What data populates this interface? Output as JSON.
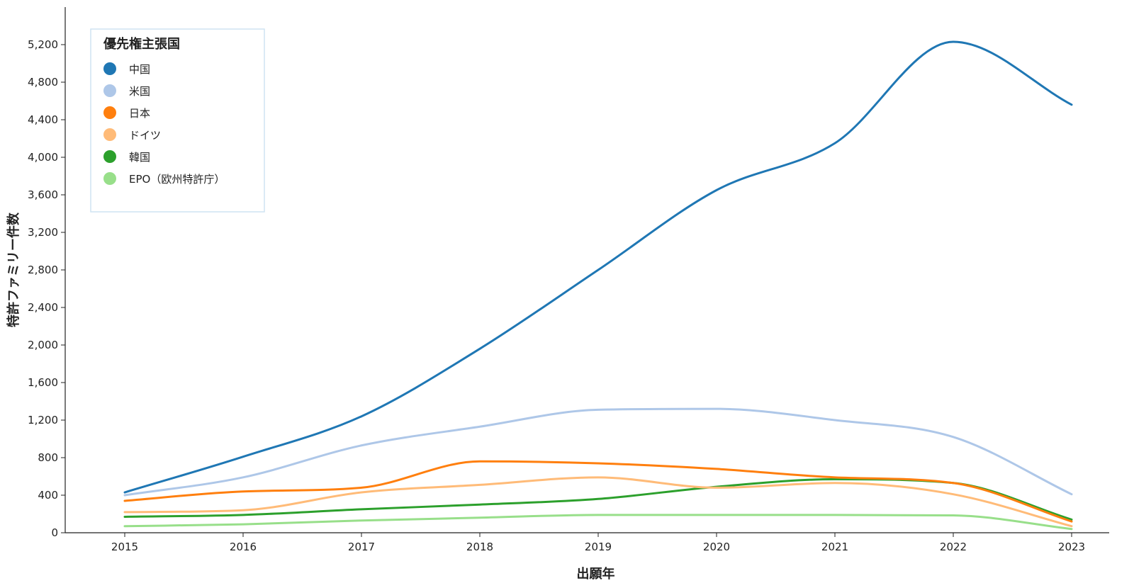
{
  "chart_data": {
    "type": "line",
    "xlabel": "出願年",
    "ylabel": "特許ファミリー件数",
    "x": [
      2015,
      2016,
      2017,
      2018,
      2019,
      2020,
      2021,
      2022,
      2023
    ],
    "xticks": [
      "2015",
      "2016",
      "2017",
      "2018",
      "2019",
      "2020",
      "2021",
      "2022",
      "2023"
    ],
    "ylim": [
      0,
      5600
    ],
    "yticks": [
      "0",
      "400",
      "800",
      "1,200",
      "1,600",
      "2,000",
      "2,400",
      "2,800",
      "3,200",
      "3,600",
      "4,000",
      "4,400",
      "4,800",
      "5,200"
    ],
    "grid": false,
    "legend": {
      "title": "優先権主張国",
      "placement": "top-left"
    },
    "series": [
      {
        "name": "中国",
        "color": "#1f77b4",
        "values": [
          430,
          810,
          1240,
          1960,
          2800,
          3650,
          4150,
          5230,
          4560
        ]
      },
      {
        "name": "米国",
        "color": "#aec7e8",
        "values": [
          400,
          590,
          930,
          1130,
          1310,
          1320,
          1200,
          1020,
          410
        ]
      },
      {
        "name": "日本",
        "color": "#ff7f0e",
        "values": [
          340,
          440,
          480,
          760,
          740,
          680,
          590,
          530,
          120
        ]
      },
      {
        "name": "ドイツ",
        "color": "#ffbb78",
        "values": [
          220,
          240,
          430,
          510,
          590,
          480,
          530,
          410,
          70
        ]
      },
      {
        "name": "韓国",
        "color": "#2ca02c",
        "values": [
          170,
          190,
          250,
          300,
          360,
          490,
          570,
          530,
          140
        ]
      },
      {
        "name": "EPO（欧州特許庁）",
        "color": "#98df8a",
        "values": [
          70,
          90,
          130,
          160,
          190,
          190,
          190,
          185,
          40
        ]
      }
    ]
  }
}
